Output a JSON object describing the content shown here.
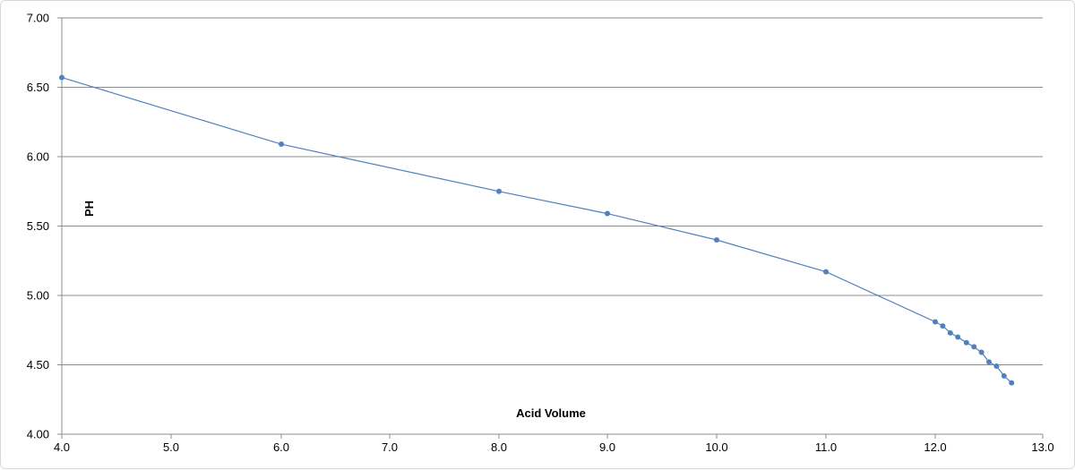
{
  "chart_data": {
    "type": "scatter",
    "title": "",
    "xlabel": "Acid Volume",
    "ylabel": "PH",
    "xlim": [
      4.0,
      13.0
    ],
    "ylim": [
      4.0,
      7.0
    ],
    "x_tick_labels": [
      "4.0",
      "5.0",
      "6.0",
      "7.0",
      "8.0",
      "9.0",
      "10.0",
      "11.0",
      "12.0",
      "13.0"
    ],
    "y_tick_labels": [
      "4.00",
      "4.50",
      "5.00",
      "5.50",
      "6.00",
      "6.50",
      "7.00"
    ],
    "grid": true,
    "legend": "none",
    "x_axis_style": "category",
    "series": [
      {
        "x": [
          4.0,
          6.0,
          8.0,
          9.0,
          10.0,
          11.0,
          12.0,
          12.07,
          12.14,
          12.21,
          12.29,
          12.36,
          12.43,
          12.5,
          12.57,
          12.64,
          12.71
        ],
        "y": [
          6.57,
          6.09,
          5.75,
          5.59,
          5.4,
          5.17,
          4.81,
          4.78,
          4.73,
          4.7,
          4.66,
          4.63,
          4.59,
          4.52,
          4.49,
          4.42,
          4.37
        ],
        "color": "#4f81bd"
      }
    ]
  }
}
